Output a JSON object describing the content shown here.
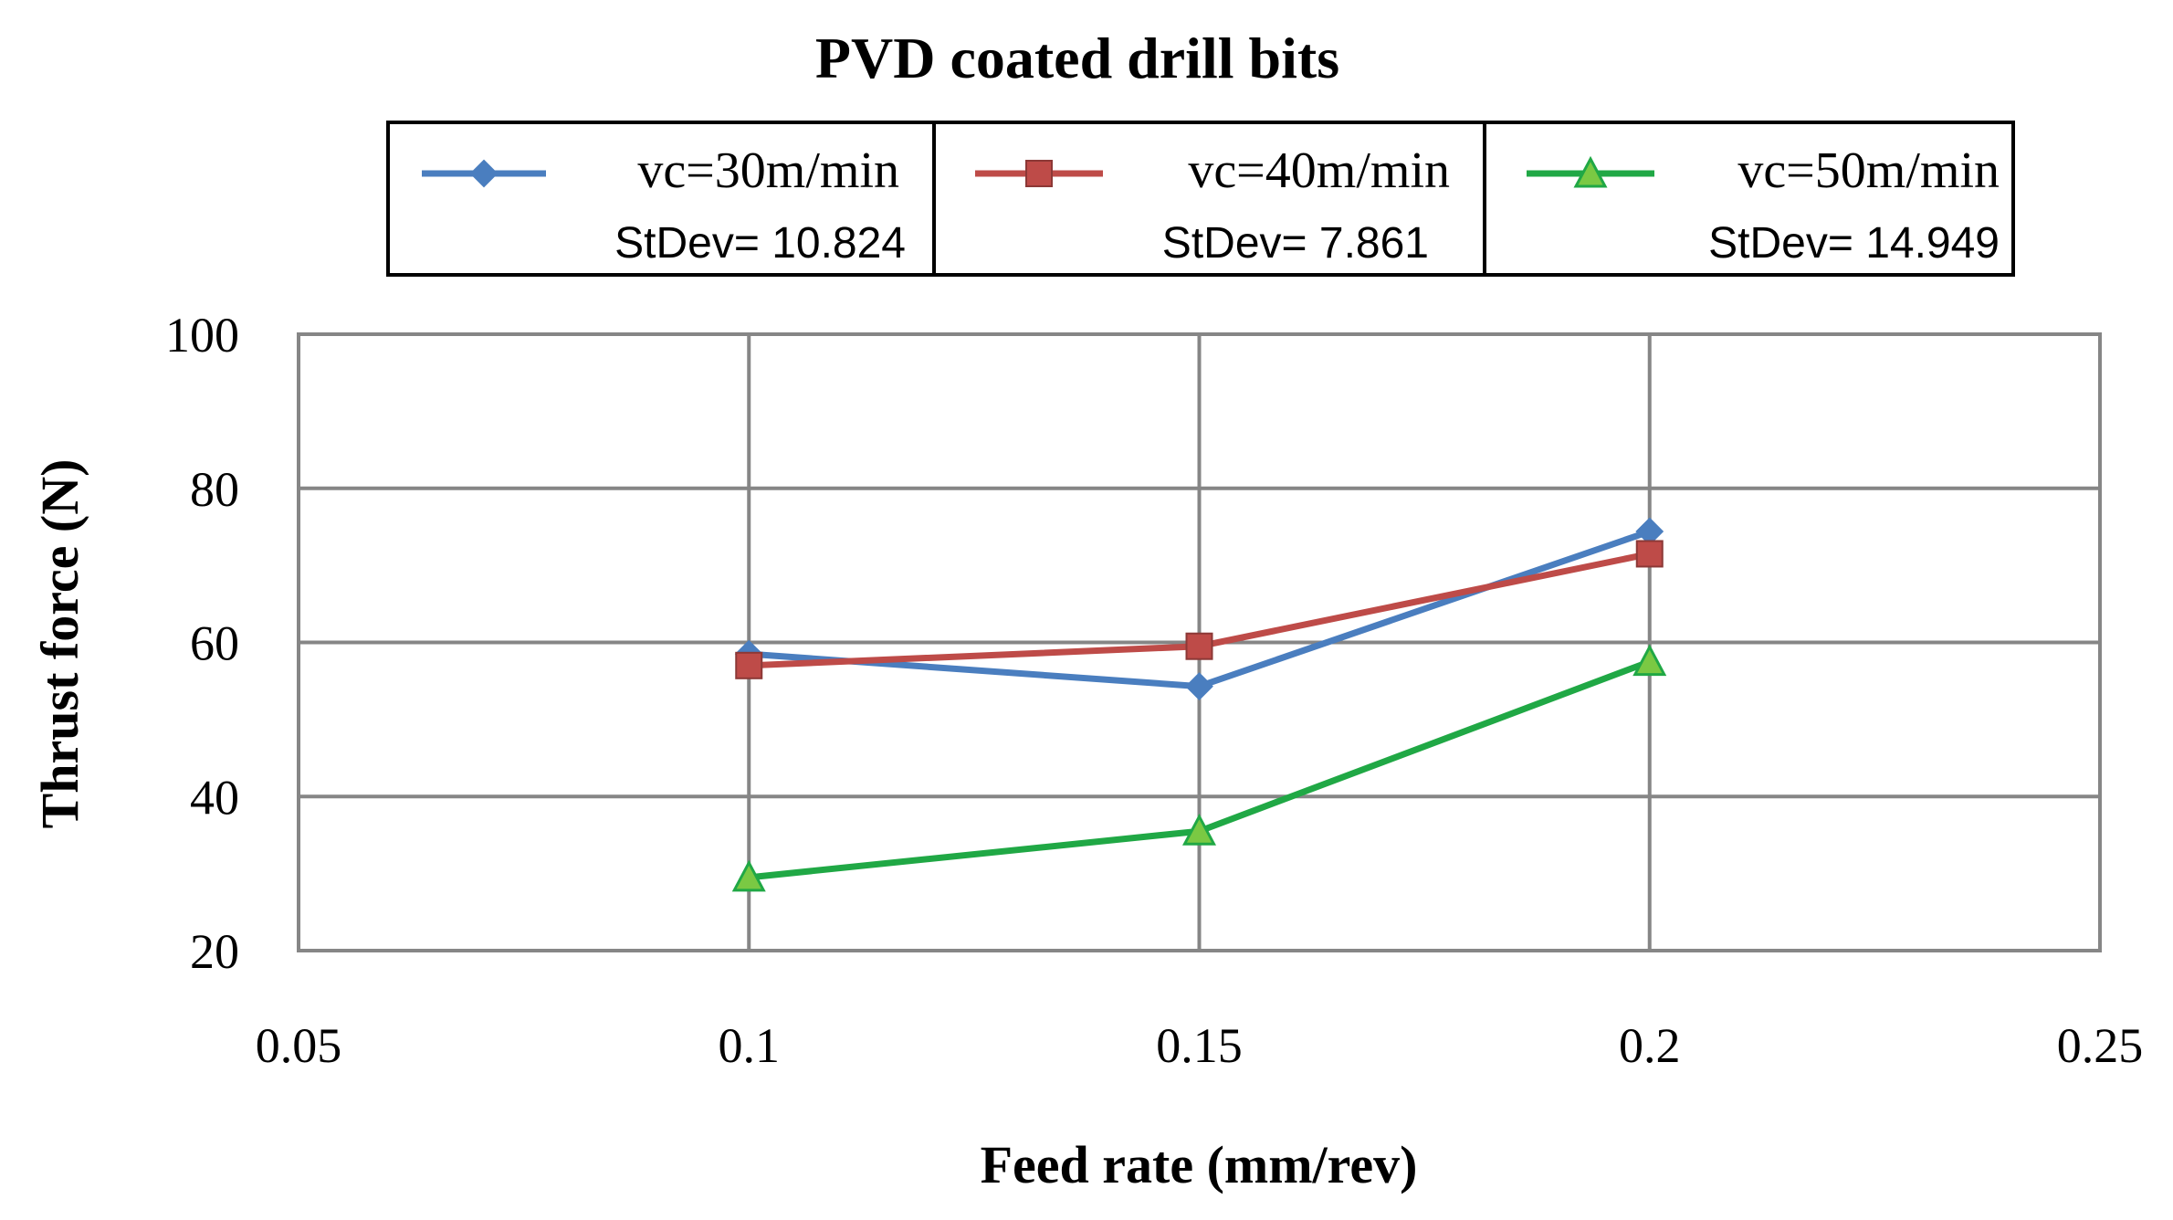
{
  "chart_data": {
    "type": "line",
    "title": "PVD coated drill bits",
    "xlabel": "Feed rate (mm/rev)",
    "ylabel": "Thrust force (N)",
    "xlim": [
      0.05,
      0.25
    ],
    "ylim": [
      20,
      100
    ],
    "xticks": [
      "0.05",
      "0.1",
      "0.15",
      "0.2",
      "0.25"
    ],
    "yticks": [
      "20",
      "40",
      "60",
      "80",
      "100"
    ],
    "xtick_values": [
      0.05,
      0.1,
      0.15,
      0.2,
      0.25
    ],
    "ytick_values": [
      20,
      40,
      60,
      80,
      100
    ],
    "grid": true,
    "legend_position": "top",
    "x": [
      0.1,
      0.15,
      0.2
    ],
    "series": [
      {
        "name": "vc=30m/min",
        "stdev": "StDev= 10.824",
        "color": "#4a7ebf",
        "marker": "diamond",
        "values": [
          58.5,
          54.3,
          74.4
        ]
      },
      {
        "name": "vc=40m/min",
        "stdev": "StDev= 7.861",
        "color": "#be4b48",
        "marker": "square",
        "values": [
          57.0,
          59.5,
          71.5
        ]
      },
      {
        "name": "vc=50m/min",
        "stdev": "StDev= 14.949",
        "color": "#20a845",
        "marker": "triangle",
        "values": [
          29.5,
          35.5,
          57.5
        ]
      }
    ]
  }
}
